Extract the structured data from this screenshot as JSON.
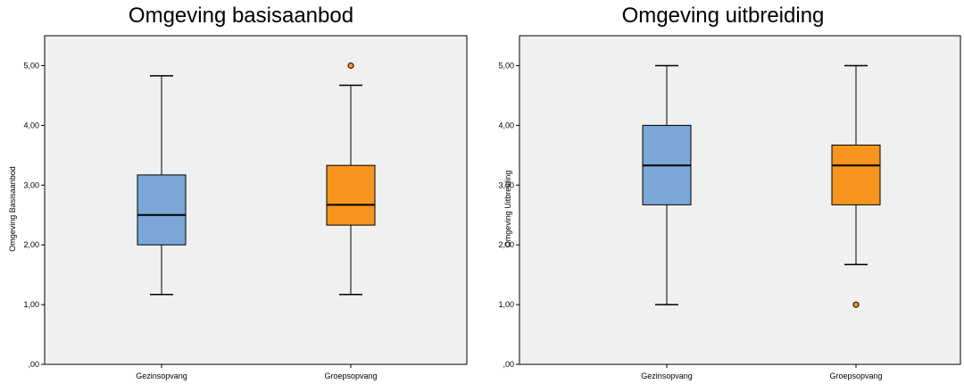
{
  "chart_data": [
    {
      "type": "boxplot",
      "title": "Omgeving basisaanbod",
      "ylabel": "Omgeving Basisaanbod",
      "xlabel": "",
      "ylim": [
        0,
        5.5
      ],
      "yticks": [
        ",00",
        "1,00",
        "2,00",
        "3,00",
        "4,00",
        "5,00"
      ],
      "grid": false,
      "categories": [
        "Gezinsopvang",
        "Groepsopvang"
      ],
      "boxes": [
        {
          "category": "Gezinsopvang",
          "min": 1.17,
          "q1": 2.0,
          "median": 2.5,
          "q3": 3.17,
          "max": 4.83,
          "outliers": [],
          "color": "#7BA7D7"
        },
        {
          "category": "Groepsopvang",
          "min": 1.17,
          "q1": 2.33,
          "median": 2.67,
          "q3": 3.33,
          "max": 4.67,
          "outliers": [
            5.0
          ],
          "color": "#F7941D"
        }
      ]
    },
    {
      "type": "boxplot",
      "title": "Omgeving uitbreiding",
      "ylabel": "Omgeving Uitbreiding",
      "xlabel": "",
      "ylim": [
        0,
        5.5
      ],
      "yticks": [
        ",00",
        "1,00",
        "2,00",
        "3,00",
        "4,00",
        "5,00"
      ],
      "grid": false,
      "categories": [
        "Gezinsopvang",
        "Groepsopvang"
      ],
      "boxes": [
        {
          "category": "Gezinsopvang",
          "min": 1.0,
          "q1": 2.67,
          "median": 3.33,
          "q3": 4.0,
          "max": 5.0,
          "outliers": [],
          "color": "#7BA7D7"
        },
        {
          "category": "Groepsopvang",
          "min": 1.67,
          "q1": 2.67,
          "median": 3.33,
          "q3": 3.67,
          "max": 5.0,
          "outliers": [
            1.0
          ],
          "color": "#F7941D"
        }
      ]
    }
  ],
  "colors": {
    "plot_background": "#F0F0F0",
    "gezinsopvang": "#7BA7D7",
    "groepsopvang": "#F7941D",
    "outlier_fill": "#F7941D"
  }
}
